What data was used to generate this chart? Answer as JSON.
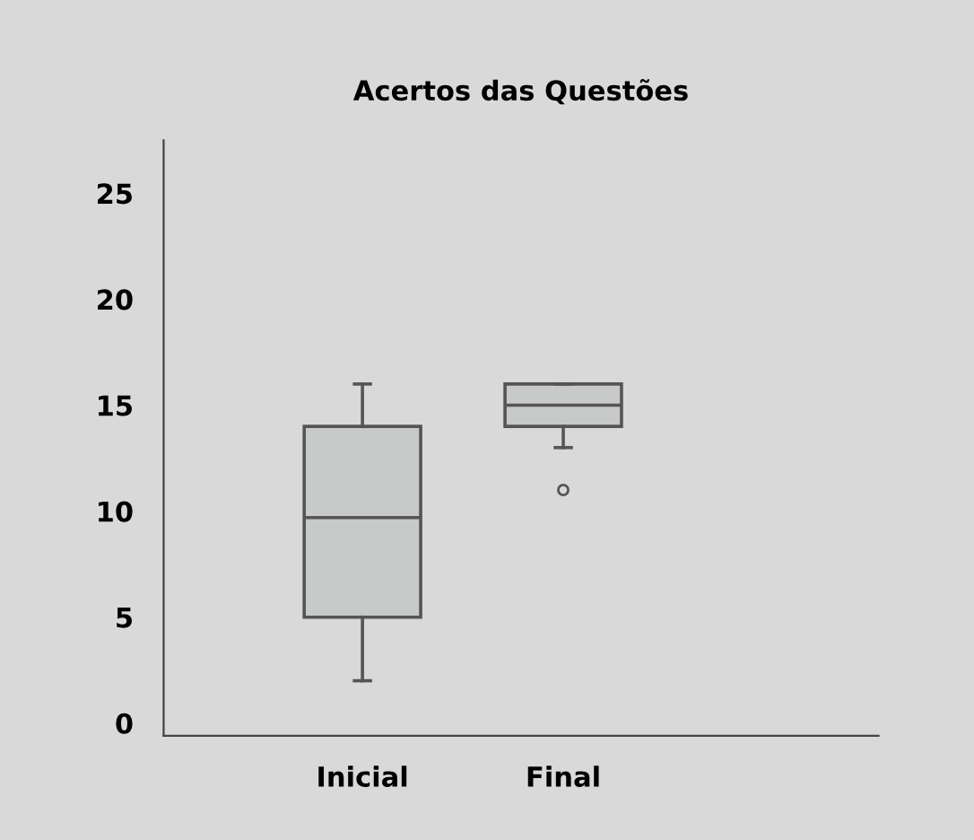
{
  "chart_data": {
    "type": "box",
    "title": "Acertos das Questões",
    "categories": [
      "Inicial",
      "Final"
    ],
    "boxes": [
      {
        "low": 2,
        "q1": 5,
        "median": 9.7,
        "q3": 14,
        "high": 16
      },
      {
        "low": 13,
        "q1": 14,
        "median": 15,
        "q3": 16,
        "high": 16,
        "outliers": [
          11
        ]
      }
    ],
    "color": "#c8c9c9",
    "ylim": [
      -0.6,
      27.5
    ],
    "yticks": [
      0,
      5,
      10,
      15,
      20,
      25
    ],
    "grid": false,
    "legend": false
  }
}
